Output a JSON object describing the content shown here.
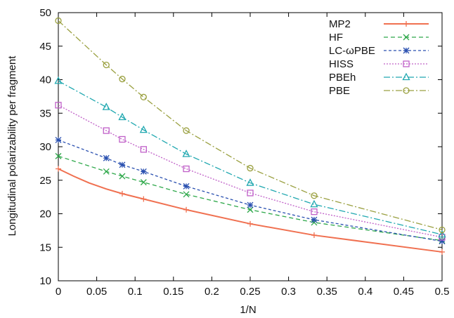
{
  "chart_data": {
    "type": "line",
    "xlabel": "1/N",
    "ylabel": "Longitudinal polarizability per fragment",
    "xlim": [
      0,
      0.5
    ],
    "ylim": [
      10,
      50
    ],
    "xticks": [
      0,
      0.05,
      0.1,
      0.15,
      0.2,
      0.25,
      0.3,
      0.35,
      0.4,
      0.45,
      0.5
    ],
    "yticks": [
      10,
      15,
      20,
      25,
      30,
      35,
      40,
      45,
      50
    ],
    "xtick_labels": [
      "0",
      "0.05",
      "0.1",
      "0.15",
      "0.2",
      "0.25",
      "0.3",
      "0.35",
      "0.4",
      "0.45",
      "0.5"
    ],
    "ytick_labels": [
      "10",
      "15",
      "20",
      "25",
      "30",
      "35",
      "40",
      "45",
      "50"
    ],
    "grid": false,
    "legend_position": "top-right",
    "x": [
      0,
      0.0625,
      0.0833,
      0.1111,
      0.1667,
      0.25,
      0.3333,
      0.5
    ],
    "series": [
      {
        "name": "MP2",
        "color": "#f07050",
        "marker": "plus",
        "dash": "",
        "values": [
          26.7,
          null,
          23.0,
          22.2,
          20.6,
          18.5,
          16.8,
          14.3
        ],
        "curve": [
          [
            0,
            26.7
          ],
          [
            0.02,
            25.6
          ],
          [
            0.04,
            24.6
          ],
          [
            0.0625,
            23.7
          ],
          [
            0.0833,
            23.0
          ],
          [
            0.1111,
            22.2
          ],
          [
            0.1667,
            20.6
          ],
          [
            0.25,
            18.5
          ],
          [
            0.3333,
            16.8
          ],
          [
            0.4,
            15.8
          ],
          [
            0.5,
            14.3
          ]
        ]
      },
      {
        "name": "HF",
        "color": "#2ea84a",
        "marker": "x",
        "dash": "6,4",
        "values": [
          28.6,
          26.3,
          25.6,
          24.7,
          22.9,
          20.6,
          18.7,
          16.0
        ]
      },
      {
        "name": "LC-ωPBE",
        "color": "#2a50b0",
        "marker": "asterisk",
        "dash": "4,3",
        "values": [
          31.0,
          28.3,
          27.3,
          26.3,
          24.1,
          21.3,
          19.1,
          15.9
        ]
      },
      {
        "name": "HISS",
        "color": "#c060c8",
        "marker": "square",
        "dash": "2,2",
        "values": [
          36.2,
          32.4,
          31.1,
          29.6,
          26.7,
          23.1,
          20.3,
          16.5
        ]
      },
      {
        "name": "PBEh",
        "color": "#20a8b0",
        "marker": "triangle",
        "dash": "9,3,2,3",
        "values": [
          39.8,
          35.9,
          34.4,
          32.5,
          28.9,
          24.6,
          21.4,
          16.9
        ]
      },
      {
        "name": "PBE",
        "color": "#9aa040",
        "marker": "circle",
        "dash": "9,3,2,3",
        "values": [
          48.8,
          42.2,
          40.1,
          37.4,
          32.4,
          26.8,
          22.7,
          17.6
        ]
      }
    ]
  }
}
